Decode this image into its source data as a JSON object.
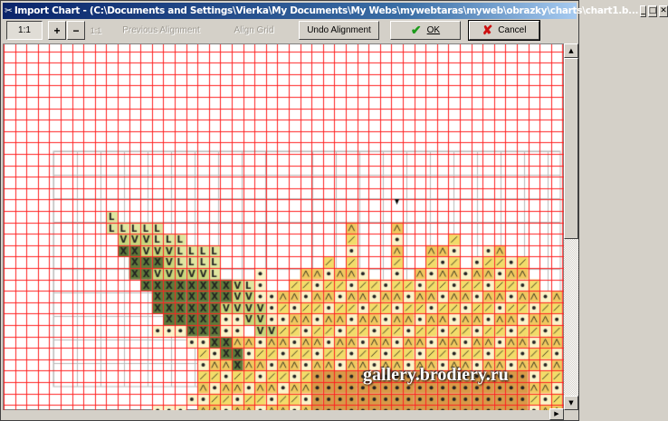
{
  "window": {
    "title": "Import Chart - (C:\\Documents and Settings\\Vierka\\My Documents\\My Webs\\mywebtaras\\myweb\\obrazky\\charts\\chart1.b...",
    "app_icon": "needle-icon",
    "controls": {
      "minimize": "_",
      "maximize": "□",
      "close": "✕"
    }
  },
  "toolbar": {
    "zoom_1to1": "1:1",
    "zoom_in": "+",
    "zoom_out": "−",
    "actual_size": "1:1",
    "previous_alignment": "Previous Alignment",
    "align_grid": "Align Grid",
    "undo_alignment": "Undo Alignment",
    "ok": "OK",
    "cancel": "Cancel",
    "ok_icon": "✔",
    "cancel_icon": "✘"
  },
  "colors": {
    "grid": "#ff2020",
    "title_start": "#0a246a",
    "title_end": "#a6caf0",
    "dark_green": "#5e7a3a",
    "light_green": "#c8d67a",
    "yellow": "#f2dc6a",
    "orange": "#e8a040",
    "ok_green": "#1a9a1a",
    "cancel_red": "#cc1010"
  },
  "watermark": "gallery.brodiery.ru",
  "scrollbar": {
    "up": "▲",
    "down": "▼",
    "right": "▶"
  }
}
